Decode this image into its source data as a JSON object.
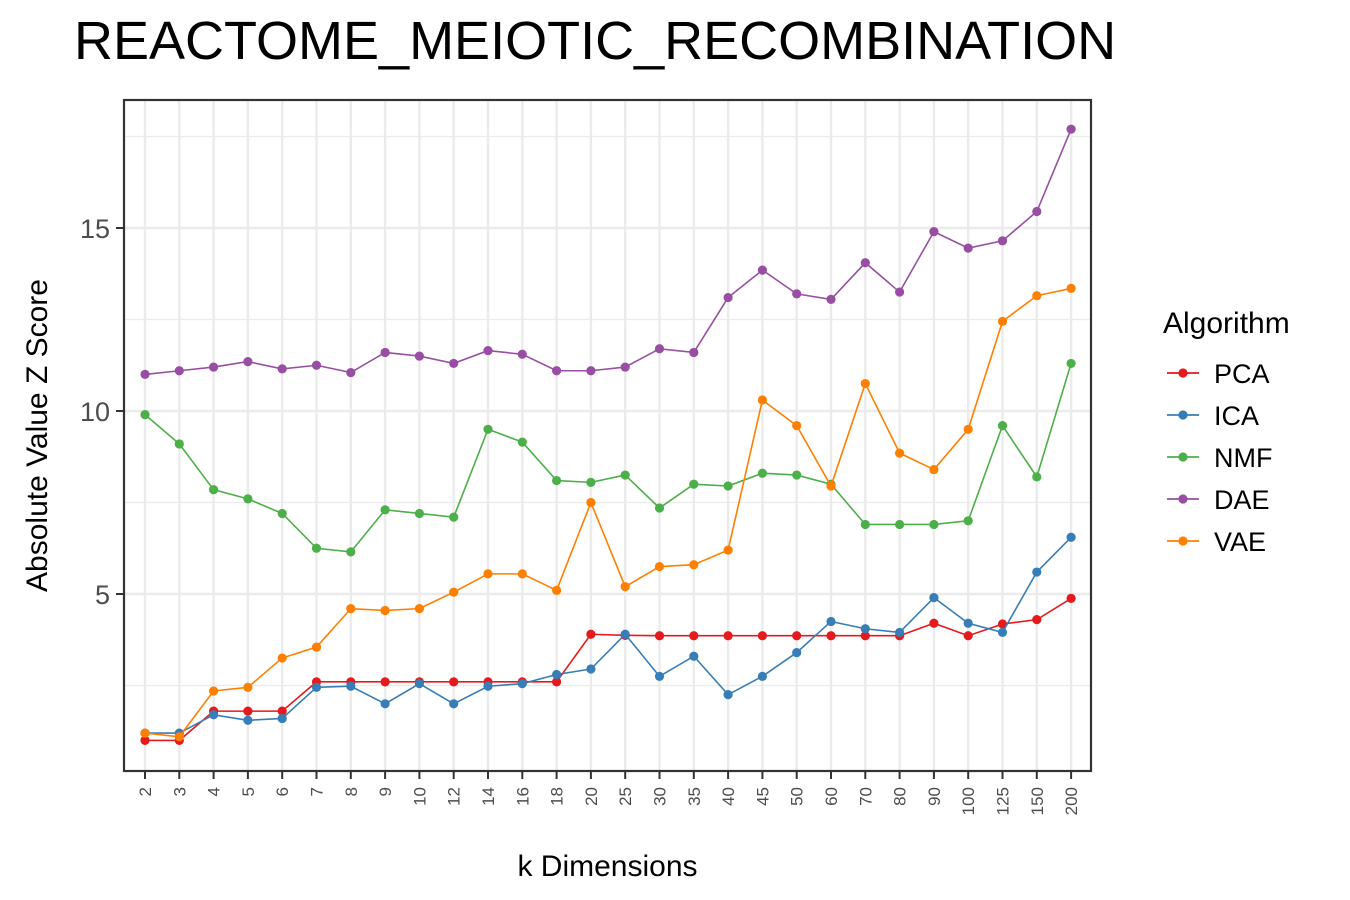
{
  "chart_data": {
    "type": "line",
    "title": "REACTOME_MEIOTIC_RECOMBINATION",
    "xlabel": "k Dimensions",
    "ylabel": "Absolute Value Z Score",
    "categories": [
      "2",
      "3",
      "4",
      "5",
      "6",
      "7",
      "8",
      "9",
      "10",
      "12",
      "14",
      "16",
      "18",
      "20",
      "25",
      "30",
      "35",
      "40",
      "45",
      "50",
      "60",
      "70",
      "80",
      "90",
      "100",
      "125",
      "150",
      "200"
    ],
    "y_ticks": [
      5,
      10,
      15
    ],
    "ylim": [
      0.2,
      18.2
    ],
    "grid": true,
    "legend": {
      "title": "Algorithm",
      "position": "right"
    },
    "series": [
      {
        "name": "PCA",
        "color": "#e41a1c",
        "values": [
          1.0,
          1.0,
          1.8,
          1.8,
          1.8,
          2.6,
          2.6,
          2.6,
          2.6,
          2.6,
          2.6,
          2.6,
          2.6,
          3.9,
          3.87,
          3.86,
          3.86,
          3.86,
          3.86,
          3.86,
          3.86,
          3.86,
          3.86,
          4.2,
          3.86,
          4.18,
          4.3,
          4.88
        ]
      },
      {
        "name": "ICA",
        "color": "#377eb8",
        "values": [
          1.2,
          1.2,
          1.7,
          1.55,
          1.6,
          2.45,
          2.48,
          2.0,
          2.55,
          2.0,
          2.48,
          2.55,
          2.8,
          2.95,
          3.9,
          2.75,
          3.3,
          2.25,
          2.75,
          3.4,
          4.25,
          4.05,
          3.95,
          4.9,
          4.2,
          3.95,
          5.6,
          6.55
        ]
      },
      {
        "name": "NMF",
        "color": "#4daf4a",
        "values": [
          9.9,
          9.1,
          7.85,
          7.6,
          7.2,
          6.25,
          6.15,
          7.3,
          7.2,
          7.1,
          9.5,
          9.15,
          8.1,
          8.05,
          8.25,
          7.35,
          8.0,
          7.95,
          8.3,
          8.25,
          8.0,
          6.9,
          6.9,
          6.9,
          7.0,
          9.6,
          8.2,
          11.3
        ]
      },
      {
        "name": "DAE",
        "color": "#984ea3",
        "values": [
          11.0,
          11.1,
          11.2,
          11.35,
          11.15,
          11.25,
          11.05,
          11.6,
          11.5,
          11.3,
          11.65,
          11.55,
          11.1,
          11.1,
          11.2,
          11.7,
          11.6,
          13.1,
          13.85,
          13.2,
          13.05,
          14.05,
          13.25,
          14.9,
          14.45,
          14.65,
          15.45,
          17.7
        ]
      },
      {
        "name": "VAE",
        "color": "#ff7f00",
        "values": [
          1.2,
          1.1,
          2.35,
          2.45,
          3.25,
          3.55,
          4.6,
          4.55,
          4.6,
          5.05,
          5.55,
          5.55,
          5.1,
          7.5,
          5.2,
          5.75,
          5.8,
          6.2,
          10.3,
          9.6,
          7.95,
          10.75,
          8.85,
          8.4,
          9.5,
          12.45,
          13.15,
          13.35
        ]
      }
    ]
  }
}
